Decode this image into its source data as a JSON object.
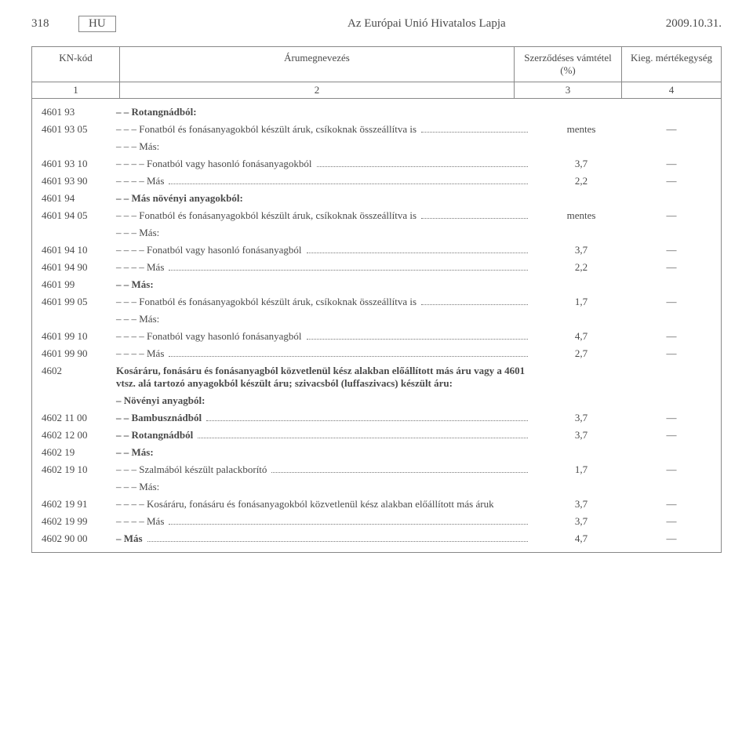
{
  "header": {
    "page_no": "318",
    "lang_box": "HU",
    "journal_title": "Az Európai Unió Hivatalos Lapja",
    "date": "2009.10.31."
  },
  "columns": {
    "kn": "KN-kód",
    "desc": "Árumegnevezés",
    "rate": "Szerződéses vámtétel (%)",
    "unit": "Kieg. mértékegység",
    "n1": "1",
    "n2": "2",
    "n3": "3",
    "n4": "4"
  },
  "rows": [
    {
      "kn": "4601 93",
      "desc": "– – Rotangnádból:",
      "bold": true
    },
    {
      "kn": "4601 93 05",
      "desc": "– – – Fonatból és fonásanyagokból készült áruk, csíkoknak összeállítva is",
      "rate": "mentes",
      "unit": "—",
      "dots": true
    },
    {
      "kn": "",
      "desc": "– – – Más:"
    },
    {
      "kn": "4601 93 10",
      "desc": "– – – – Fonatból vagy hasonló fonásanyagokból",
      "rate": "3,7",
      "unit": "—",
      "dots": true
    },
    {
      "kn": "4601 93 90",
      "desc": "– – – – Más",
      "rate": "2,2",
      "unit": "—",
      "dots": true
    },
    {
      "kn": "4601 94",
      "desc": "– – Más növényi anyagokból:",
      "bold": true
    },
    {
      "kn": "4601 94 05",
      "desc": "– – – Fonatból és fonásanyagokból készült áruk, csíkoknak összeállítva is",
      "rate": "mentes",
      "unit": "—",
      "dots": true
    },
    {
      "kn": "",
      "desc": "– – – Más:"
    },
    {
      "kn": "4601 94 10",
      "desc": "– – – – Fonatból vagy hasonló fonásanyagból",
      "rate": "3,7",
      "unit": "—",
      "dots": true
    },
    {
      "kn": "4601 94 90",
      "desc": "– – – – Más",
      "rate": "2,2",
      "unit": "—",
      "dots": true
    },
    {
      "kn": "4601 99",
      "desc": "– – Más:",
      "bold": true
    },
    {
      "kn": "4601 99 05",
      "desc": "– – – Fonatból és fonásanyagokból készült áruk, csíkoknak összeállítva is",
      "rate": "1,7",
      "unit": "—",
      "dots": true
    },
    {
      "kn": "",
      "desc": "– – – Más:"
    },
    {
      "kn": "4601 99 10",
      "desc": "– – – – Fonatból vagy hasonló fonásanyagból",
      "rate": "4,7",
      "unit": "—",
      "dots": true
    },
    {
      "kn": "4601 99 90",
      "desc": "– – – – Más",
      "rate": "2,7",
      "unit": "—",
      "dots": true
    },
    {
      "kn": "4602",
      "desc": "Kosáráru, fonásáru és fonásanyagból közvetlenül kész alakban előállított más áru vagy a 4601 vtsz. alá tartozó anyagokból készült áru; szivacsból (luffaszivacs) készült áru:",
      "bold": true
    },
    {
      "kn": "",
      "desc": "– Növényi anyagból:",
      "bold": true
    },
    {
      "kn": "4602 11 00",
      "desc": "– – Bambusznádból",
      "bold": true,
      "rate": "3,7",
      "unit": "—",
      "dots": true
    },
    {
      "kn": "4602 12 00",
      "desc": "– – Rotangnádból",
      "bold": true,
      "rate": "3,7",
      "unit": "—",
      "dots": true
    },
    {
      "kn": "4602 19",
      "desc": "– – Más:",
      "bold": true
    },
    {
      "kn": "4602 19 10",
      "desc": "– – – Szalmából készült palackborító",
      "rate": "1,7",
      "unit": "—",
      "dots": true
    },
    {
      "kn": "",
      "desc": "– – – Más:"
    },
    {
      "kn": "4602 19 91",
      "desc": "– – – – Kosáráru, fonásáru és fonásanyagokból közvetlenül kész alakban előállított más áruk",
      "rate": "3,7",
      "unit": "—"
    },
    {
      "kn": "4602 19 99",
      "desc": "– – – – Más",
      "rate": "3,7",
      "unit": "—",
      "dots": true
    },
    {
      "kn": "4602 90 00",
      "desc": "– Más",
      "bold": true,
      "rate": "4,7",
      "unit": "—",
      "dots": true
    }
  ]
}
